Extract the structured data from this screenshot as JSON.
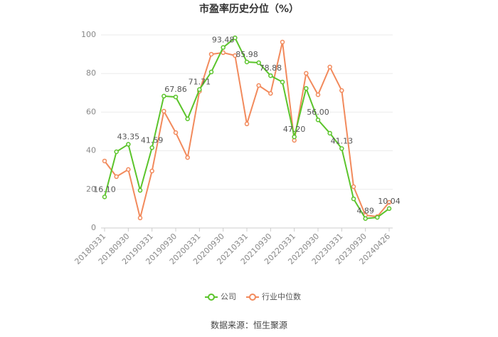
{
  "chart_data": {
    "type": "line",
    "title": "市盈率历史分位（%）",
    "categories": [
      "20180331",
      null,
      "20180930",
      null,
      "20190331",
      null,
      "20190930",
      null,
      "20200331",
      null,
      "20200930",
      null,
      "20210331",
      null,
      "20210930",
      null,
      "20220331",
      null,
      "20220930",
      null,
      "20230331",
      null,
      "20230930",
      null,
      "20240426"
    ],
    "series": [
      {
        "name": "公司",
        "color": "#5bc42b",
        "values": [
          16.1,
          39.5,
          43.35,
          19.5,
          41.59,
          68.3,
          67.86,
          56.5,
          71.71,
          80.8,
          93.48,
          98.5,
          85.98,
          85.6,
          78.88,
          75.6,
          47.2,
          72.3,
          56.0,
          49.1,
          41.13,
          15.1,
          4.89,
          5.5,
          10.04
        ],
        "value_labels": [
          "16.10",
          null,
          "43.35",
          null,
          "41.59",
          null,
          "67.86",
          null,
          "71.71",
          null,
          "93.48",
          null,
          "85.98",
          null,
          "78.88",
          null,
          "47.20",
          null,
          "56.00",
          null,
          "41.13",
          null,
          "4.89",
          null,
          "10.04"
        ]
      },
      {
        "name": "行业中位数",
        "color": "#f28a5c",
        "values": [
          34.7,
          26.6,
          30.3,
          5.2,
          29.5,
          60.5,
          49.4,
          36.5,
          70.8,
          90.0,
          90.8,
          89.3,
          53.9,
          73.8,
          69.7,
          96.3,
          45.4,
          80.1,
          69.0,
          83.4,
          71.2,
          21.4,
          6.6,
          5.9,
          13.3
        ]
      }
    ],
    "ylim": [
      0,
      100
    ],
    "yticks": [
      0,
      20,
      40,
      60,
      80,
      100
    ],
    "grid": true,
    "legend": "bottom",
    "source": "数据来源：恒生聚源"
  }
}
